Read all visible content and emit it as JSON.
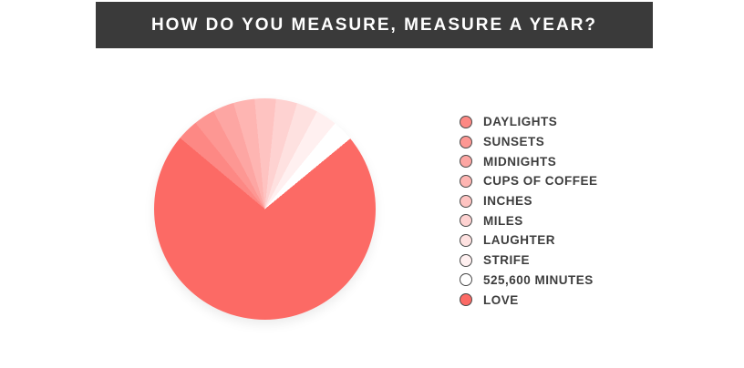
{
  "page": {
    "background_color": "#FFFFFF"
  },
  "header": {
    "title": "HOW DO YOU MEASURE, MEASURE A YEAR?",
    "background_color": "#3A3A3A",
    "text_color": "#FFFFFF"
  },
  "chart_data": {
    "type": "pie",
    "title": "HOW DO YOU MEASURE, MEASURE A YEAR?",
    "categories": [
      "DAYLIGHTS",
      "SUNSETS",
      "MIDNIGHTS",
      "CUPS OF COFFEE",
      "INCHES",
      "MILES",
      "LAUGHTER",
      "STRIFE",
      "525,600 MINUTES",
      "LOVE"
    ],
    "values_percent": [
      3.1,
      3.1,
      3.1,
      3.1,
      3.1,
      3.1,
      3.1,
      3.1,
      3.1,
      72.1
    ],
    "slice_colors": [
      "#FD8884",
      "#FD9793",
      "#FDA6A3",
      "#FEB5B2",
      "#FEC3C1",
      "#FED2D1",
      "#FEE1E0",
      "#FFF0F0",
      "#FFFFFF",
      "#FC6A65"
    ],
    "base_color": "#FC6A65",
    "start_angle_deg": -50,
    "direction": "clockwise",
    "legend": {
      "position": "right",
      "marker": "circle",
      "marker_border_color": "#4A4A4A",
      "label_color": "#3D3D3D"
    }
  }
}
